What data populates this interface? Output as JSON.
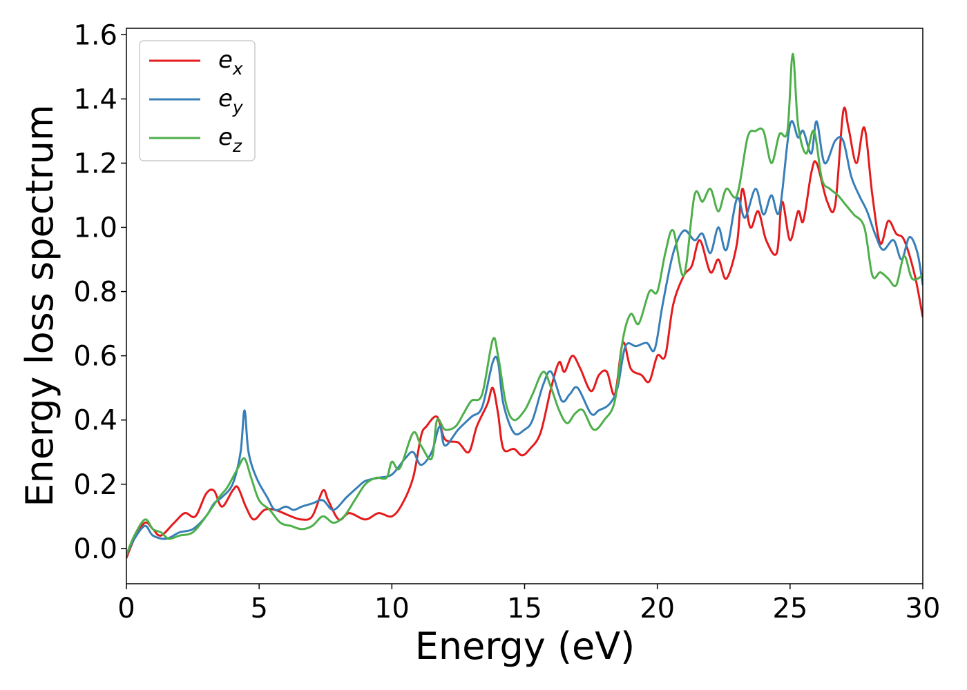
{
  "chart_data": {
    "type": "line",
    "xlabel": "Energy (eV)",
    "ylabel": "Energy loss spectrum",
    "xlim": [
      0,
      30
    ],
    "ylim": [
      -0.11,
      1.62
    ],
    "xticks": [
      0,
      5,
      10,
      15,
      20,
      25,
      30
    ],
    "yticks": [
      0.0,
      0.2,
      0.4,
      0.6,
      0.8,
      1.0,
      1.2,
      1.4,
      1.6
    ],
    "xtick_labels": [
      "0",
      "5",
      "10",
      "15",
      "20",
      "25",
      "30"
    ],
    "ytick_labels": [
      "0.0",
      "0.2",
      "0.4",
      "0.6",
      "0.8",
      "1.0",
      "1.2",
      "1.4",
      "1.6"
    ],
    "grid": false,
    "legend_position": "top-left",
    "series": [
      {
        "name": "e",
        "subscript": "x",
        "color": "#e41a1c",
        "points": [
          [
            0,
            -0.03
          ],
          [
            0.3,
            0.03
          ],
          [
            0.7,
            0.08
          ],
          [
            1.0,
            0.06
          ],
          [
            1.3,
            0.04
          ],
          [
            1.8,
            0.08
          ],
          [
            2.2,
            0.11
          ],
          [
            2.6,
            0.1
          ],
          [
            3.0,
            0.17
          ],
          [
            3.3,
            0.18
          ],
          [
            3.6,
            0.13
          ],
          [
            4.0,
            0.18
          ],
          [
            4.2,
            0.19
          ],
          [
            4.5,
            0.13
          ],
          [
            4.8,
            0.09
          ],
          [
            5.2,
            0.12
          ],
          [
            5.6,
            0.12
          ],
          [
            6.2,
            0.1
          ],
          [
            6.6,
            0.09
          ],
          [
            7.0,
            0.1
          ],
          [
            7.4,
            0.18
          ],
          [
            7.6,
            0.15
          ],
          [
            8.0,
            0.09
          ],
          [
            8.4,
            0.11
          ],
          [
            9.0,
            0.09
          ],
          [
            9.5,
            0.11
          ],
          [
            10.0,
            0.1
          ],
          [
            10.4,
            0.14
          ],
          [
            10.8,
            0.22
          ],
          [
            11.1,
            0.35
          ],
          [
            11.3,
            0.38
          ],
          [
            11.7,
            0.41
          ],
          [
            12.0,
            0.34
          ],
          [
            12.5,
            0.33
          ],
          [
            12.9,
            0.3
          ],
          [
            13.2,
            0.38
          ],
          [
            13.6,
            0.45
          ],
          [
            13.8,
            0.5
          ],
          [
            14.0,
            0.42
          ],
          [
            14.2,
            0.31
          ],
          [
            14.6,
            0.31
          ],
          [
            14.9,
            0.29
          ],
          [
            15.2,
            0.31
          ],
          [
            15.6,
            0.36
          ],
          [
            16.0,
            0.5
          ],
          [
            16.3,
            0.58
          ],
          [
            16.5,
            0.55
          ],
          [
            16.8,
            0.6
          ],
          [
            17.1,
            0.56
          ],
          [
            17.5,
            0.49
          ],
          [
            17.8,
            0.54
          ],
          [
            18.1,
            0.55
          ],
          [
            18.4,
            0.48
          ],
          [
            18.7,
            0.64
          ],
          [
            19.0,
            0.56
          ],
          [
            19.4,
            0.54
          ],
          [
            19.7,
            0.52
          ],
          [
            20.0,
            0.6
          ],
          [
            20.3,
            0.6
          ],
          [
            20.6,
            0.76
          ],
          [
            21.0,
            0.85
          ],
          [
            21.3,
            0.88
          ],
          [
            21.6,
            0.96
          ],
          [
            22.0,
            0.86
          ],
          [
            22.3,
            0.9
          ],
          [
            22.6,
            0.84
          ],
          [
            23.0,
            0.95
          ],
          [
            23.2,
            1.12
          ],
          [
            23.5,
            1.0
          ],
          [
            23.8,
            1.05
          ],
          [
            24.1,
            0.96
          ],
          [
            24.5,
            0.92
          ],
          [
            24.7,
            1.08
          ],
          [
            25.0,
            0.96
          ],
          [
            25.3,
            1.05
          ],
          [
            25.5,
            1.02
          ],
          [
            25.8,
            1.17
          ],
          [
            26.0,
            1.2
          ],
          [
            26.4,
            1.08
          ],
          [
            26.7,
            1.07
          ],
          [
            27.0,
            1.36
          ],
          [
            27.2,
            1.31
          ],
          [
            27.5,
            1.2
          ],
          [
            27.8,
            1.31
          ],
          [
            28.1,
            1.1
          ],
          [
            28.4,
            0.95
          ],
          [
            28.7,
            1.02
          ],
          [
            29.0,
            0.98
          ],
          [
            29.3,
            0.96
          ],
          [
            29.7,
            0.85
          ],
          [
            30.0,
            0.72
          ]
        ]
      },
      {
        "name": "e",
        "subscript": "y",
        "color": "#377eb8",
        "points": [
          [
            0,
            -0.02
          ],
          [
            0.3,
            0.03
          ],
          [
            0.7,
            0.07
          ],
          [
            1.0,
            0.04
          ],
          [
            1.5,
            0.03
          ],
          [
            2.0,
            0.05
          ],
          [
            2.5,
            0.06
          ],
          [
            3.0,
            0.1
          ],
          [
            3.3,
            0.14
          ],
          [
            3.6,
            0.16
          ],
          [
            4.0,
            0.2
          ],
          [
            4.3,
            0.3
          ],
          [
            4.45,
            0.43
          ],
          [
            4.6,
            0.3
          ],
          [
            4.9,
            0.22
          ],
          [
            5.3,
            0.16
          ],
          [
            5.6,
            0.12
          ],
          [
            6.0,
            0.13
          ],
          [
            6.3,
            0.12
          ],
          [
            6.6,
            0.13
          ],
          [
            7.0,
            0.14
          ],
          [
            7.4,
            0.15
          ],
          [
            7.8,
            0.12
          ],
          [
            8.3,
            0.16
          ],
          [
            8.7,
            0.19
          ],
          [
            9.0,
            0.21
          ],
          [
            9.5,
            0.22
          ],
          [
            10.0,
            0.23
          ],
          [
            10.5,
            0.28
          ],
          [
            10.8,
            0.3
          ],
          [
            11.1,
            0.26
          ],
          [
            11.5,
            0.3
          ],
          [
            11.8,
            0.38
          ],
          [
            12.0,
            0.32
          ],
          [
            12.5,
            0.37
          ],
          [
            13.0,
            0.41
          ],
          [
            13.4,
            0.44
          ],
          [
            13.8,
            0.58
          ],
          [
            14.0,
            0.58
          ],
          [
            14.2,
            0.45
          ],
          [
            14.6,
            0.36
          ],
          [
            15.0,
            0.37
          ],
          [
            15.3,
            0.4
          ],
          [
            15.7,
            0.51
          ],
          [
            16.0,
            0.55
          ],
          [
            16.4,
            0.46
          ],
          [
            16.7,
            0.48
          ],
          [
            17.0,
            0.5
          ],
          [
            17.5,
            0.42
          ],
          [
            17.8,
            0.43
          ],
          [
            18.2,
            0.45
          ],
          [
            18.5,
            0.5
          ],
          [
            18.8,
            0.63
          ],
          [
            19.2,
            0.63
          ],
          [
            19.6,
            0.64
          ],
          [
            19.9,
            0.62
          ],
          [
            20.2,
            0.76
          ],
          [
            20.6,
            0.92
          ],
          [
            21.0,
            0.99
          ],
          [
            21.4,
            0.96
          ],
          [
            21.7,
            0.98
          ],
          [
            22.0,
            0.92
          ],
          [
            22.3,
            1.0
          ],
          [
            22.6,
            0.93
          ],
          [
            23.0,
            1.09
          ],
          [
            23.3,
            1.03
          ],
          [
            23.7,
            1.12
          ],
          [
            24.0,
            1.04
          ],
          [
            24.3,
            1.1
          ],
          [
            24.6,
            1.05
          ],
          [
            25.0,
            1.32
          ],
          [
            25.3,
            1.28
          ],
          [
            25.5,
            1.3
          ],
          [
            25.8,
            1.23
          ],
          [
            26.0,
            1.33
          ],
          [
            26.3,
            1.2
          ],
          [
            26.7,
            1.27
          ],
          [
            27.0,
            1.27
          ],
          [
            27.3,
            1.16
          ],
          [
            27.6,
            1.1
          ],
          [
            27.9,
            1.05
          ],
          [
            28.2,
            0.98
          ],
          [
            28.5,
            0.93
          ],
          [
            28.9,
            0.96
          ],
          [
            29.2,
            0.9
          ],
          [
            29.5,
            0.97
          ],
          [
            29.8,
            0.92
          ],
          [
            30.0,
            0.82
          ]
        ]
      },
      {
        "name": "e",
        "subscript": "z",
        "color": "#4daf4a",
        "points": [
          [
            0,
            -0.02
          ],
          [
            0.3,
            0.04
          ],
          [
            0.7,
            0.09
          ],
          [
            1.0,
            0.06
          ],
          [
            1.3,
            0.05
          ],
          [
            1.6,
            0.03
          ],
          [
            2.0,
            0.04
          ],
          [
            2.5,
            0.05
          ],
          [
            3.0,
            0.1
          ],
          [
            3.5,
            0.16
          ],
          [
            3.8,
            0.19
          ],
          [
            4.2,
            0.25
          ],
          [
            4.45,
            0.28
          ],
          [
            4.7,
            0.22
          ],
          [
            5.0,
            0.15
          ],
          [
            5.4,
            0.12
          ],
          [
            5.8,
            0.08
          ],
          [
            6.2,
            0.07
          ],
          [
            6.6,
            0.06
          ],
          [
            7.0,
            0.07
          ],
          [
            7.4,
            0.1
          ],
          [
            7.8,
            0.08
          ],
          [
            8.2,
            0.1
          ],
          [
            8.6,
            0.15
          ],
          [
            9.0,
            0.2
          ],
          [
            9.4,
            0.22
          ],
          [
            9.8,
            0.22
          ],
          [
            10.0,
            0.27
          ],
          [
            10.3,
            0.25
          ],
          [
            10.8,
            0.36
          ],
          [
            11.1,
            0.32
          ],
          [
            11.5,
            0.28
          ],
          [
            11.7,
            0.4
          ],
          [
            12.0,
            0.37
          ],
          [
            12.4,
            0.38
          ],
          [
            12.7,
            0.42
          ],
          [
            13.0,
            0.46
          ],
          [
            13.4,
            0.48
          ],
          [
            13.8,
            0.65
          ],
          [
            14.0,
            0.6
          ],
          [
            14.3,
            0.45
          ],
          [
            14.6,
            0.4
          ],
          [
            15.0,
            0.43
          ],
          [
            15.3,
            0.48
          ],
          [
            15.7,
            0.55
          ],
          [
            16.0,
            0.5
          ],
          [
            16.3,
            0.43
          ],
          [
            16.6,
            0.39
          ],
          [
            16.9,
            0.42
          ],
          [
            17.2,
            0.43
          ],
          [
            17.6,
            0.37
          ],
          [
            18.0,
            0.4
          ],
          [
            18.4,
            0.46
          ],
          [
            18.7,
            0.65
          ],
          [
            19.0,
            0.73
          ],
          [
            19.3,
            0.7
          ],
          [
            19.7,
            0.8
          ],
          [
            20.0,
            0.8
          ],
          [
            20.3,
            0.92
          ],
          [
            20.6,
            0.99
          ],
          [
            21.0,
            0.85
          ],
          [
            21.4,
            1.1
          ],
          [
            21.7,
            1.08
          ],
          [
            22.0,
            1.12
          ],
          [
            22.3,
            1.05
          ],
          [
            22.6,
            1.12
          ],
          [
            23.0,
            1.1
          ],
          [
            23.4,
            1.28
          ],
          [
            23.7,
            1.3
          ],
          [
            24.0,
            1.3
          ],
          [
            24.3,
            1.2
          ],
          [
            24.6,
            1.29
          ],
          [
            24.9,
            1.3
          ],
          [
            25.1,
            1.54
          ],
          [
            25.3,
            1.32
          ],
          [
            25.6,
            1.23
          ],
          [
            25.9,
            1.3
          ],
          [
            26.2,
            1.15
          ],
          [
            26.5,
            1.12
          ],
          [
            26.8,
            1.1
          ],
          [
            27.1,
            1.07
          ],
          [
            27.4,
            1.04
          ],
          [
            27.8,
            1.0
          ],
          [
            28.1,
            0.85
          ],
          [
            28.4,
            0.86
          ],
          [
            28.7,
            0.84
          ],
          [
            29.0,
            0.82
          ],
          [
            29.3,
            0.91
          ],
          [
            29.6,
            0.84
          ],
          [
            30.0,
            0.85
          ]
        ]
      }
    ]
  }
}
